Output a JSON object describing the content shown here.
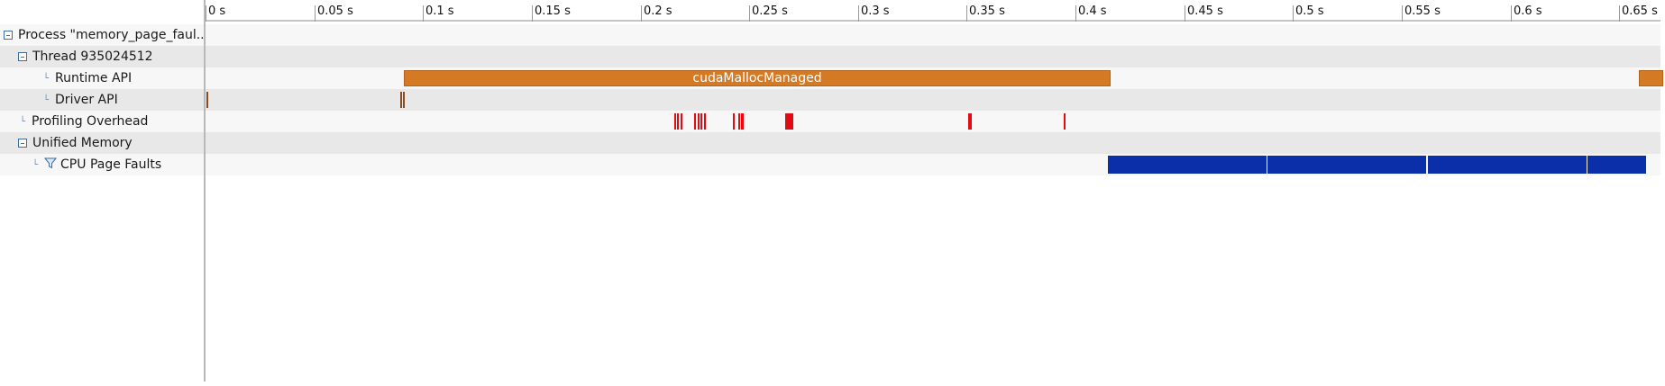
{
  "tree": {
    "rows": [
      {
        "label": "Process \"memory_page_faul...",
        "kind": "collapse"
      },
      {
        "label": "Thread 935024512",
        "kind": "collapse"
      },
      {
        "label": "Runtime API",
        "kind": "branch"
      },
      {
        "label": "Driver API",
        "kind": "branch"
      },
      {
        "label": "Profiling Overhead",
        "kind": "branch"
      },
      {
        "label": "Unified Memory",
        "kind": "collapse"
      },
      {
        "label": "CPU Page Faults",
        "kind": "branch-filter"
      }
    ]
  },
  "ruler": {
    "ticks": [
      "0 s",
      "0.05 s",
      "0.1 s",
      "0.15 s",
      "0.2 s",
      "0.25 s",
      "0.3 s",
      "0.35 s",
      "0.4 s",
      "0.45 s",
      "0.5 s",
      "0.55 s",
      "0.6 s",
      "0.65 s"
    ],
    "tick_seconds": [
      0,
      0.05,
      0.1,
      0.15,
      0.2,
      0.25,
      0.3,
      0.35,
      0.4,
      0.45,
      0.5,
      0.55,
      0.6,
      0.65
    ]
  },
  "timeline": {
    "runtime_api": [
      {
        "label": "cudaMallocManaged",
        "start": 0.0906,
        "end": 0.4155
      },
      {
        "label": "",
        "start": 0.6585,
        "end": 0.6695
      }
    ],
    "driver_api": [
      {
        "start": 0.0,
        "end": 0.0005
      },
      {
        "start": 0.0893,
        "end": 0.09
      },
      {
        "start": 0.0904,
        "end": 0.0912
      }
    ],
    "profiling_overhead": [
      {
        "start": 0.215,
        "end": 0.2155
      },
      {
        "start": 0.2165,
        "end": 0.217
      },
      {
        "start": 0.218,
        "end": 0.2185
      },
      {
        "start": 0.2242,
        "end": 0.2247
      },
      {
        "start": 0.2257,
        "end": 0.2262
      },
      {
        "start": 0.2272,
        "end": 0.2277
      },
      {
        "start": 0.2288,
        "end": 0.2293
      },
      {
        "start": 0.242,
        "end": 0.2425
      },
      {
        "start": 0.2445,
        "end": 0.2455
      },
      {
        "start": 0.246,
        "end": 0.2472
      },
      {
        "start": 0.2663,
        "end": 0.2702
      },
      {
        "start": 0.3501,
        "end": 0.3517
      },
      {
        "start": 0.3944,
        "end": 0.395
      }
    ],
    "cpu_page_faults": [
      {
        "start": 0.4145,
        "end": 0.4875
      },
      {
        "start": 0.488,
        "end": 0.561
      },
      {
        "start": 0.5615,
        "end": 0.6345
      },
      {
        "start": 0.635,
        "end": 0.662
      }
    ]
  },
  "colors": {
    "runtime_api": "#d47a24",
    "driver_api": "#8a4b1e",
    "profiling_overhead": "#e30b12",
    "cpu_page_faults": "#0a2fa8"
  }
}
